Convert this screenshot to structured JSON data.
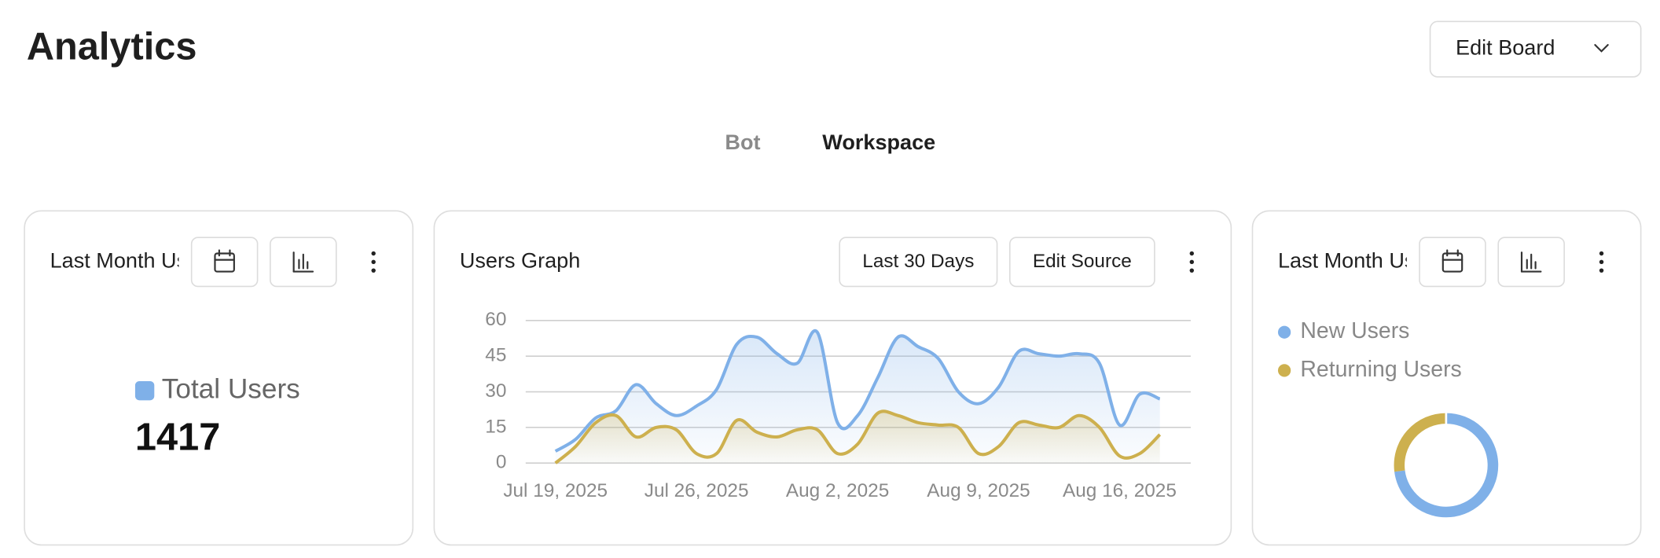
{
  "header": {
    "title": "Analytics",
    "edit_button": "Edit Board"
  },
  "tabs": [
    "Bot",
    "Workspace"
  ],
  "stat_card": {
    "title": "Last Month Users",
    "label": "Total Users",
    "value": "1417",
    "color": "#7fb0e8"
  },
  "graph_card": {
    "title": "Users Graph",
    "buttons": [
      "Last 30 Days",
      "Edit Source"
    ]
  },
  "donut_card": {
    "title": "Last Month Users"
  },
  "chart_data": [
    {
      "type": "line",
      "categories": [
        "Jul 19, 2025",
        null,
        null,
        null,
        null,
        null,
        null,
        "Jul 26, 2025",
        null,
        null,
        null,
        null,
        null,
        null,
        "Aug 2, 2025",
        null,
        null,
        null,
        null,
        null,
        null,
        "Aug 9, 2025",
        null,
        null,
        null,
        null,
        null,
        null,
        "Aug 16, 2025",
        null,
        null
      ],
      "series": [
        {
          "color": "#7fb0e8",
          "values": [
            5,
            10,
            19,
            22,
            33,
            25,
            20,
            24,
            31,
            50,
            53,
            46,
            42,
            55,
            17,
            20,
            36,
            53,
            49,
            44,
            30,
            25,
            32,
            47,
            46,
            45,
            46,
            42,
            16,
            29,
            27
          ]
        },
        {
          "color": "#cdb04e",
          "values": [
            0,
            7,
            17,
            20,
            11,
            15,
            14,
            4,
            4,
            18,
            13,
            11,
            14,
            14,
            4,
            8,
            21,
            20,
            17,
            16,
            15,
            4,
            7,
            17,
            16,
            15,
            20,
            15,
            3,
            4,
            12
          ]
        }
      ],
      "ylim": [
        0,
        60
      ],
      "yticks": [
        0,
        15,
        30,
        45,
        60
      ],
      "grid": true,
      "area": true
    },
    {
      "type": "pie",
      "categories": [
        "New Users",
        "Returning Users"
      ],
      "values": [
        73,
        27
      ],
      "colors": [
        "#7fb0e8",
        "#cdb04e"
      ],
      "donut": true
    }
  ]
}
